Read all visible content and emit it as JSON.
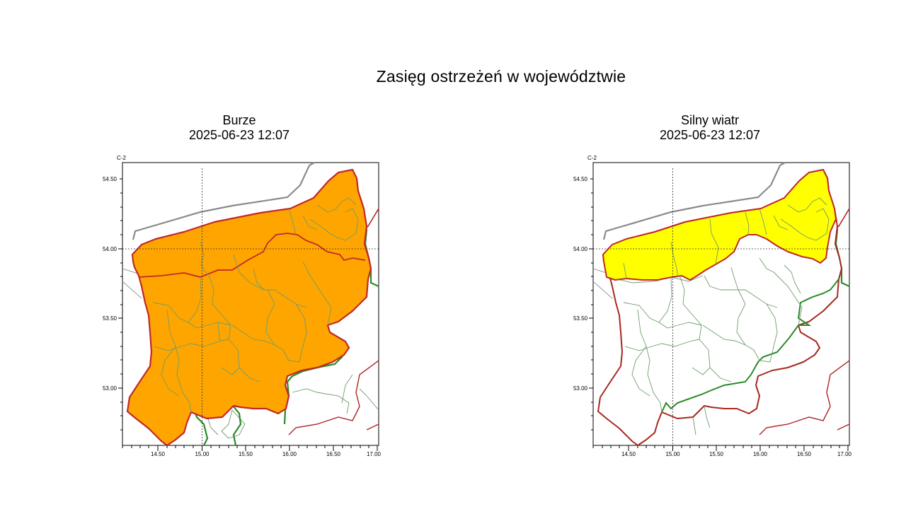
{
  "page": {
    "title": "Zasięg ostrzeżeń w województwie"
  },
  "colors": {
    "storm_fill": "#FFA500",
    "wind_fill": "#FFFF00",
    "voivodeship_border": "#cc1f1f",
    "neighbor_border": "#2a8a2a",
    "county_border": "#6a9a6a",
    "coastline": "#8a8a8a"
  },
  "panels": [
    {
      "id": "burze",
      "title": "Burze",
      "datetime": "2025-06-23 12:07",
      "corner_label": "C-2",
      "warning_area": "whole-region",
      "x_ticks": [
        "14.50",
        "15.00",
        "15.50",
        "16.00",
        "16.50",
        "17.00"
      ],
      "y_ticks": [
        "54.50",
        "54.00",
        "53.50",
        "53.00"
      ]
    },
    {
      "id": "silny-wiatr",
      "title": "Silny wiatr",
      "datetime": "2025-06-23 12:07",
      "corner_label": "C-2",
      "warning_area": "coastal-belt",
      "x_ticks": [
        "14.50",
        "15.00",
        "15.50",
        "16.00",
        "16.50",
        "17.00"
      ],
      "y_ticks": [
        "54.50",
        "54.00",
        "53.50",
        "53.00"
      ]
    }
  ]
}
